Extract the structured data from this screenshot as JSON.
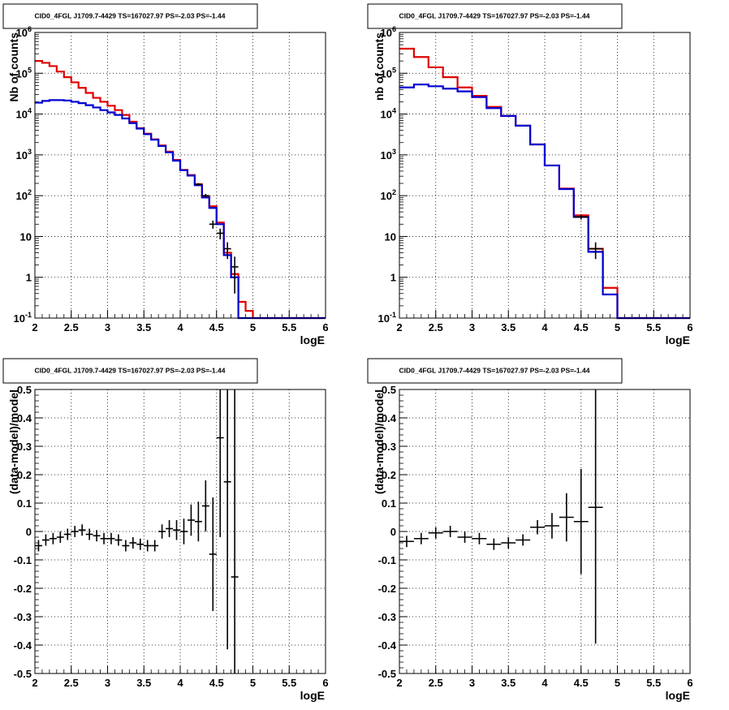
{
  "chart_data": [
    {
      "type": "line",
      "title": "CID0_4FGL J1709.7-4429 TS=167027.97 PS=-2.03 PS=-1.44",
      "xlabel": "logE",
      "ylabel": "Nb of counts",
      "xlim": [
        2,
        6
      ],
      "ylim": [
        0.1,
        1000000
      ],
      "yscale": "log",
      "grid": true,
      "x_ticks": [
        "2",
        "2.5",
        "3",
        "3.5",
        "4",
        "4.5",
        "5",
        "5.5",
        "6"
      ],
      "y_ticks": [
        "10-1",
        "1",
        "10",
        "102",
        "103",
        "104",
        "105",
        "106"
      ],
      "bin_edges": [
        2.0,
        2.1,
        2.2,
        2.3,
        2.4,
        2.5,
        2.6,
        2.7,
        2.8,
        2.9,
        3.0,
        3.1,
        3.2,
        3.3,
        3.4,
        3.5,
        3.6,
        3.7,
        3.8,
        3.9,
        4.0,
        4.1,
        4.2,
        4.3,
        4.4,
        4.5,
        4.6,
        4.7,
        4.8,
        4.9,
        5.0,
        5.1,
        5.2,
        5.3,
        5.4,
        5.5,
        5.6,
        5.7,
        5.8,
        5.9,
        6.0
      ],
      "series": [
        {
          "color": "#e00000",
          "values": [
            200000,
            180000,
            150000,
            110000,
            80000,
            60000,
            44000,
            33000,
            25000,
            20000,
            16000,
            12500,
            9500,
            6500,
            4500,
            3300,
            2400,
            1700,
            1200,
            750,
            430,
            320,
            190,
            95,
            55,
            22,
            4,
            1.2,
            0.25,
            0.15,
            0.1,
            0.1,
            0.1,
            0.1,
            0.1,
            0.1,
            0.1,
            0.1,
            0.1,
            0.1
          ]
        },
        {
          "color": "#0000d0",
          "values": [
            19000,
            21000,
            22000,
            22000,
            21500,
            20000,
            18500,
            16500,
            14500,
            12500,
            11000,
            9500,
            7800,
            6000,
            4400,
            3200,
            2350,
            1650,
            1150,
            720,
            420,
            310,
            180,
            90,
            50,
            20,
            3.5,
            1.0,
            0.1,
            0.1,
            0.1,
            0.1,
            0.1,
            0.1,
            0.1,
            0.1,
            0.1,
            0.1,
            0.1,
            0.1
          ]
        }
      ],
      "data_points": {
        "x": [
          4.25,
          4.35,
          4.45,
          4.55,
          4.65,
          4.75
        ],
        "y": [
          190,
          100,
          20,
          12,
          5,
          1.8
        ],
        "yerr": [
          14,
          10,
          4.5,
          3.5,
          2.2,
          1.4
        ]
      }
    },
    {
      "type": "line",
      "title": "CID0_4FGL J1709.7-4429 TS=167027.97 PS=-2.03 PS=-1.44",
      "xlabel": "logE",
      "ylabel": "nb of counts",
      "xlim": [
        2,
        6
      ],
      "ylim": [
        0.1,
        1000000
      ],
      "yscale": "log",
      "grid": true,
      "x_ticks": [
        "2",
        "2.5",
        "3",
        "3.5",
        "4",
        "4.5",
        "5",
        "5.5",
        "6"
      ],
      "y_ticks": [
        "10-1",
        "1",
        "10",
        "102",
        "103",
        "104",
        "105",
        "106"
      ],
      "bin_edges": [
        2.0,
        2.2,
        2.4,
        2.6,
        2.8,
        3.0,
        3.2,
        3.4,
        3.6,
        3.8,
        4.0,
        4.2,
        4.4,
        4.6,
        4.8,
        5.0,
        5.2,
        5.4,
        5.6,
        5.8,
        6.0
      ],
      "series": [
        {
          "color": "#e00000",
          "values": [
            400000,
            250000,
            140000,
            80000,
            45000,
            28000,
            15000,
            9000,
            5200,
            1800,
            550,
            150,
            33,
            5,
            0.55,
            0.1,
            0.1,
            0.1,
            0.1,
            0.1
          ]
        },
        {
          "color": "#0000d0",
          "values": [
            45000,
            53000,
            48000,
            42000,
            36000,
            26000,
            14000,
            9000,
            5200,
            1800,
            550,
            145,
            30,
            4.2,
            0.38,
            0.1,
            0.1,
            0.1,
            0.1,
            0.1
          ]
        }
      ],
      "data_points": {
        "x": [
          4.5,
          4.7
        ],
        "y": [
          30,
          5
        ],
        "yerr": [
          4,
          2.2
        ]
      }
    },
    {
      "type": "scatter",
      "title": "CID0_4FGL J1709.7-4429 TS=167027.97 PS=-2.03 PS=-1.44",
      "xlabel": "logE",
      "ylabel": "(data-model)/model",
      "xlim": [
        2,
        6
      ],
      "ylim": [
        -0.5,
        0.5
      ],
      "grid": true,
      "x_ticks": [
        "2",
        "2.5",
        "3",
        "3.5",
        "4",
        "4.5",
        "5",
        "5.5",
        "6"
      ],
      "y_ticks": [
        "-0.5",
        "-0.4",
        "-0.3",
        "-0.2",
        "-0.1",
        "0",
        "0.1",
        "0.2",
        "0.3",
        "0.4",
        "0.5"
      ],
      "xerr": 0.05,
      "x": [
        2.05,
        2.15,
        2.25,
        2.35,
        2.45,
        2.55,
        2.65,
        2.75,
        2.85,
        2.95,
        3.05,
        3.15,
        3.25,
        3.35,
        3.45,
        3.55,
        3.65,
        3.75,
        3.85,
        3.95,
        4.05,
        4.15,
        4.25,
        4.35,
        4.45,
        4.55,
        4.65,
        4.75
      ],
      "y": [
        -0.05,
        -0.03,
        -0.025,
        -0.02,
        -0.01,
        0.0,
        0.005,
        -0.01,
        -0.015,
        -0.025,
        -0.025,
        -0.03,
        -0.05,
        -0.04,
        -0.045,
        -0.05,
        -0.05,
        0.0,
        0.01,
        0.005,
        0.0,
        0.04,
        0.035,
        0.09,
        -0.08,
        0.33,
        0.175,
        -0.16
      ],
      "yerr": [
        0.02,
        0.02,
        0.02,
        0.02,
        0.02,
        0.02,
        0.02,
        0.02,
        0.02,
        0.02,
        0.02,
        0.02,
        0.02,
        0.02,
        0.02,
        0.02,
        0.02,
        0.025,
        0.03,
        0.035,
        0.045,
        0.055,
        0.07,
        0.09,
        0.2,
        0.35,
        0.59,
        0.74
      ]
    },
    {
      "type": "scatter",
      "title": "CID0_4FGL J1709.7-4429 TS=167027.97 PS=-2.03 PS=-1.44",
      "xlabel": "logE",
      "ylabel": "(data-model)/model",
      "xlim": [
        2,
        6
      ],
      "ylim": [
        -0.5,
        0.5
      ],
      "grid": true,
      "x_ticks": [
        "2",
        "2.5",
        "3",
        "3.5",
        "4",
        "4.5",
        "5",
        "5.5",
        "6"
      ],
      "y_ticks": [
        "-0.5",
        "-0.4",
        "-0.3",
        "-0.2",
        "-0.1",
        "0",
        "0.1",
        "0.2",
        "0.3",
        "0.4",
        "0.5"
      ],
      "xerr": 0.1,
      "x": [
        2.1,
        2.3,
        2.5,
        2.7,
        2.9,
        3.1,
        3.3,
        3.5,
        3.7,
        3.9,
        4.1,
        4.3,
        4.5,
        4.7
      ],
      "y": [
        -0.035,
        -0.025,
        -0.005,
        0.0,
        -0.02,
        -0.025,
        -0.045,
        -0.04,
        -0.03,
        0.015,
        0.02,
        0.05,
        0.035,
        0.085
      ],
      "yerr": [
        0.02,
        0.02,
        0.02,
        0.02,
        0.02,
        0.02,
        0.02,
        0.02,
        0.02,
        0.025,
        0.045,
        0.085,
        0.185,
        0.48
      ]
    }
  ]
}
